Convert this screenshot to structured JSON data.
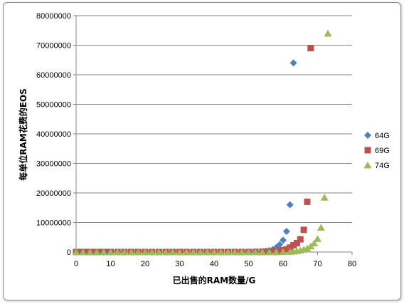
{
  "chart_data": {
    "type": "scatter",
    "xlabel": "已出售的RAM数量/G",
    "ylabel": "每单位RAM花费的EOS",
    "xlim": [
      0,
      80
    ],
    "ylim": [
      0,
      80000000
    ],
    "x_ticks": [
      "0",
      "10",
      "20",
      "30",
      "40",
      "50",
      "60",
      "70",
      "80"
    ],
    "y_ticks": [
      "0",
      "10000000",
      "20000000",
      "30000000",
      "40000000",
      "50000000",
      "60000000",
      "70000000",
      "80000000"
    ],
    "grid": "horizontal",
    "legend_position": "right",
    "series": [
      {
        "name": "64G",
        "color": "#4f81bd",
        "marker": "diamond",
        "points": [
          [
            0,
            0
          ],
          [
            1,
            0
          ],
          [
            2,
            0
          ],
          [
            3,
            0
          ],
          [
            4,
            0
          ],
          [
            5,
            0
          ],
          [
            6,
            0
          ],
          [
            7,
            0
          ],
          [
            8,
            0
          ],
          [
            9,
            0
          ],
          [
            10,
            0
          ],
          [
            12,
            0
          ],
          [
            14,
            0
          ],
          [
            16,
            0
          ],
          [
            18,
            0
          ],
          [
            20,
            0
          ],
          [
            22,
            0
          ],
          [
            24,
            0
          ],
          [
            26,
            0
          ],
          [
            28,
            0
          ],
          [
            30,
            0
          ],
          [
            32,
            0
          ],
          [
            34,
            0
          ],
          [
            36,
            0
          ],
          [
            38,
            0
          ],
          [
            40,
            0
          ],
          [
            42,
            0
          ],
          [
            44,
            0
          ],
          [
            46,
            0
          ],
          [
            48,
            0
          ],
          [
            50,
            50000
          ],
          [
            52,
            100000
          ],
          [
            54,
            200000
          ],
          [
            55,
            300000
          ],
          [
            56,
            500000
          ],
          [
            57,
            800000
          ],
          [
            58,
            1500000
          ],
          [
            59,
            2500000
          ],
          [
            60,
            4000000
          ],
          [
            61,
            7000000
          ],
          [
            62,
            16000000
          ],
          [
            63,
            64000000
          ]
        ]
      },
      {
        "name": "69G",
        "color": "#c0504d",
        "marker": "square",
        "points": [
          [
            0,
            0
          ],
          [
            2,
            0
          ],
          [
            4,
            0
          ],
          [
            6,
            0
          ],
          [
            8,
            0
          ],
          [
            10,
            0
          ],
          [
            12,
            0
          ],
          [
            14,
            0
          ],
          [
            16,
            0
          ],
          [
            18,
            0
          ],
          [
            20,
            0
          ],
          [
            22,
            0
          ],
          [
            24,
            0
          ],
          [
            26,
            0
          ],
          [
            28,
            0
          ],
          [
            30,
            0
          ],
          [
            32,
            0
          ],
          [
            34,
            0
          ],
          [
            36,
            0
          ],
          [
            38,
            0
          ],
          [
            40,
            0
          ],
          [
            42,
            0
          ],
          [
            44,
            0
          ],
          [
            46,
            0
          ],
          [
            48,
            0
          ],
          [
            50,
            0
          ],
          [
            52,
            50000
          ],
          [
            54,
            100000
          ],
          [
            56,
            150000
          ],
          [
            58,
            250000
          ],
          [
            59,
            400000
          ],
          [
            60,
            600000
          ],
          [
            61,
            900000
          ],
          [
            62,
            1500000
          ],
          [
            63,
            2300000
          ],
          [
            64,
            3000000
          ],
          [
            65,
            4300000
          ],
          [
            66,
            7500000
          ],
          [
            67,
            17000000
          ],
          [
            68,
            69000000
          ]
        ]
      },
      {
        "name": "74G",
        "color": "#9bbb59",
        "marker": "triangle",
        "points": [
          [
            0,
            0
          ],
          [
            2,
            0
          ],
          [
            4,
            0
          ],
          [
            6,
            0
          ],
          [
            8,
            0
          ],
          [
            10,
            0
          ],
          [
            12,
            0
          ],
          [
            14,
            0
          ],
          [
            16,
            0
          ],
          [
            18,
            0
          ],
          [
            20,
            0
          ],
          [
            22,
            0
          ],
          [
            24,
            0
          ],
          [
            26,
            0
          ],
          [
            28,
            0
          ],
          [
            30,
            0
          ],
          [
            32,
            0
          ],
          [
            34,
            0
          ],
          [
            36,
            0
          ],
          [
            38,
            0
          ],
          [
            40,
            0
          ],
          [
            42,
            0
          ],
          [
            44,
            0
          ],
          [
            46,
            0
          ],
          [
            48,
            0
          ],
          [
            50,
            0
          ],
          [
            52,
            0
          ],
          [
            54,
            0
          ],
          [
            56,
            0
          ],
          [
            58,
            0
          ],
          [
            60,
            50000
          ],
          [
            62,
            150000
          ],
          [
            63,
            250000
          ],
          [
            64,
            400000
          ],
          [
            65,
            600000
          ],
          [
            66,
            900000
          ],
          [
            67,
            1300000
          ],
          [
            68,
            2000000
          ],
          [
            69,
            3000000
          ],
          [
            70,
            4500000
          ],
          [
            71,
            8300000
          ],
          [
            72,
            18500000
          ],
          [
            73,
            74000000
          ]
        ]
      }
    ]
  }
}
